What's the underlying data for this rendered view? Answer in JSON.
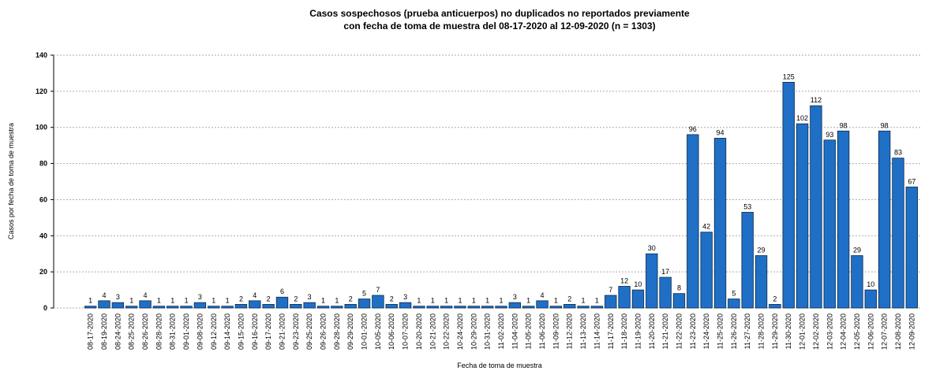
{
  "chart_data": {
    "type": "bar",
    "title": [
      "Casos sospechosos (prueba anticuerpos) no duplicados no reportados previamente",
      "con fecha de toma de muestra del 08-17-2020 al 12-09-2020 (n = 1303)"
    ],
    "x_label": "Fecha de toma de muestra",
    "y_label": "Casos por fecha de toma de muestra",
    "categories": [
      "08-17-2020",
      "08-19-2020",
      "08-24-2020",
      "08-25-2020",
      "08-26-2020",
      "08-28-2020",
      "08-31-2020",
      "09-01-2020",
      "09-08-2020",
      "09-12-2020",
      "09-14-2020",
      "09-15-2020",
      "09-16-2020",
      "09-17-2020",
      "09-21-2020",
      "09-23-2020",
      "09-25-2020",
      "09-26-2020",
      "09-28-2020",
      "09-29-2020",
      "10-01-2020",
      "10-05-2020",
      "10-06-2020",
      "10-07-2020",
      "10-20-2020",
      "10-21-2020",
      "10-22-2020",
      "10-24-2020",
      "10-29-2020",
      "10-31-2020",
      "11-02-2020",
      "11-04-2020",
      "11-05-2020",
      "11-06-2020",
      "11-09-2020",
      "11-12-2020",
      "11-13-2020",
      "11-14-2020",
      "11-17-2020",
      "11-18-2020",
      "11-19-2020",
      "11-20-2020",
      "11-21-2020",
      "11-22-2020",
      "11-23-2020",
      "11-24-2020",
      "11-25-2020",
      "11-26-2020",
      "11-27-2020",
      "11-28-2020",
      "11-29-2020",
      "11-30-2020",
      "12-01-2020",
      "12-02-2020",
      "12-03-2020",
      "12-04-2020",
      "12-05-2020",
      "12-06-2020",
      "12-07-2020",
      "12-08-2020",
      "12-09-2020"
    ],
    "values": [
      1,
      4,
      3,
      1,
      4,
      1,
      1,
      1,
      3,
      1,
      1,
      2,
      4,
      2,
      6,
      2,
      3,
      1,
      1,
      2,
      5,
      7,
      2,
      3,
      1,
      1,
      1,
      1,
      1,
      1,
      1,
      3,
      1,
      4,
      1,
      2,
      1,
      1,
      7,
      12,
      10,
      30,
      17,
      8,
      96,
      42,
      94,
      5,
      53,
      29,
      2,
      125,
      102,
      112,
      93,
      98,
      29,
      10,
      98,
      83,
      67
    ],
    "color": "#1f6fc6",
    "ylim": [
      0,
      140
    ],
    "yticks": [
      0,
      20,
      40,
      60,
      80,
      100,
      120,
      140
    ],
    "grid": true
  }
}
